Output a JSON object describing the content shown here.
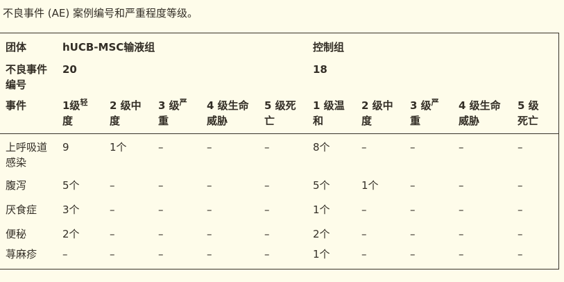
{
  "page": {
    "title": "不良事件 (AE) 案例编号和严重程度等级。"
  },
  "colors": {
    "background": "#FEFCEA",
    "text": "#332E26",
    "border": "#37322A"
  },
  "table": {
    "group_header": {
      "label": "团体",
      "group1": "hUCB-MSC输液组",
      "group2": "控制组"
    },
    "ae_count": {
      "label": "不良事件编号",
      "group1": "20",
      "group2": "18"
    },
    "event_header": {
      "label": "事件"
    },
    "grade_headers": [
      {
        "pre": "1级",
        "sup": "轻",
        "post": "度"
      },
      {
        "pre": "2 级中度",
        "sup": "",
        "post": ""
      },
      {
        "pre": "3 级",
        "sup": "严",
        "post": "重"
      },
      {
        "pre": "4 级生命威胁",
        "sup": "",
        "post": ""
      },
      {
        "pre": "5 级死亡",
        "sup": "",
        "post": ""
      },
      {
        "pre": "1 级温和",
        "sup": "",
        "post": ""
      },
      {
        "pre": "2 级中度",
        "sup": "",
        "post": ""
      },
      {
        "pre": "3 级",
        "sup": "严",
        "post": "重"
      },
      {
        "pre": "4 级生命威胁",
        "sup": "",
        "post": ""
      },
      {
        "pre": "5 级死亡",
        "sup": "",
        "post": ""
      }
    ],
    "rows": [
      {
        "event": "上呼吸道感染",
        "cells": [
          "9",
          "1个",
          "–",
          "–",
          "–",
          "8个",
          "–",
          "–",
          "–",
          "–"
        ]
      },
      {
        "event": "腹泻",
        "cells": [
          "5个",
          "–",
          "–",
          "–",
          "–",
          "5个",
          "1个",
          "–",
          "–",
          "–"
        ]
      },
      {
        "event": "厌食症",
        "cells": [
          "3个",
          "–",
          "–",
          "–",
          "–",
          "1个",
          "–",
          "–",
          "–",
          "–"
        ]
      },
      {
        "event": "便秘",
        "cells": [
          "2个",
          "–",
          "–",
          "–",
          "–",
          "2个",
          "–",
          "–",
          "–",
          "–"
        ]
      },
      {
        "event": "荨麻疹",
        "cells": [
          "–",
          "–",
          "–",
          "–",
          "–",
          "1个",
          "–",
          "–",
          "–",
          "–"
        ]
      }
    ]
  }
}
